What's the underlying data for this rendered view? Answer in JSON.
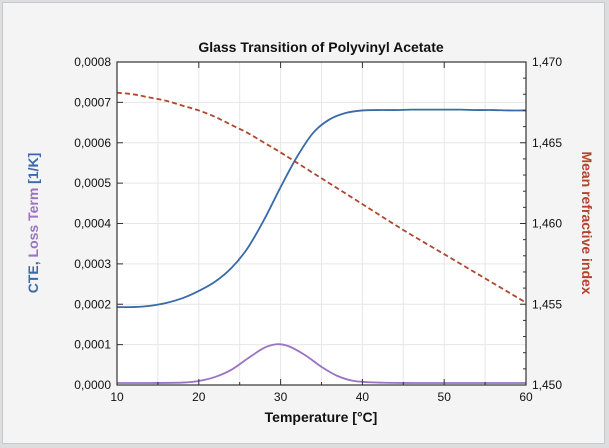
{
  "chart_data": {
    "type": "line",
    "title": "Glass Transition of Polyvinyl Acetate",
    "xlabel": "Temperature [°C]",
    "ylabel_parts": [
      {
        "text": "CTE",
        "color": "#3a6aa8"
      },
      {
        "text": ", ",
        "color": "#3a6aa8"
      },
      {
        "text": "Loss Term",
        "color": "#9b72c4"
      },
      {
        "text": " [1/K]",
        "color": "#3a6aa8"
      }
    ],
    "y2label": "Mean refractive index",
    "xlim": [
      10,
      60
    ],
    "ylim": [
      0,
      0.0008
    ],
    "y2lim": [
      1.45,
      1.47
    ],
    "xticks": [
      "10",
      "20",
      "30",
      "40",
      "50",
      "60"
    ],
    "yticks": [
      "0,0000",
      "0,0001",
      "0,0002",
      "0,0003",
      "0,0004",
      "0,0005",
      "0,0006",
      "0,0007",
      "0,0008"
    ],
    "y2ticks": [
      "1,450",
      "1,455",
      "1,460",
      "1,465",
      "1,470"
    ],
    "grid": true,
    "series": [
      {
        "axis": "left",
        "color": "#3a6aa8",
        "style": "solid",
        "x": [
          10,
          12,
          14,
          16,
          18,
          20,
          22,
          24,
          26,
          28,
          30,
          32,
          34,
          36,
          38,
          40,
          42,
          44,
          46,
          48,
          50,
          52,
          54,
          56,
          58,
          60
        ],
        "y": [
          0.000193,
          0.000193,
          0.000196,
          0.000203,
          0.000215,
          0.000233,
          0.000256,
          0.00029,
          0.00034,
          0.00041,
          0.00049,
          0.000565,
          0.000625,
          0.000658,
          0.000674,
          0.00068,
          0.000681,
          0.000681,
          0.000682,
          0.000682,
          0.000682,
          0.000682,
          0.000681,
          0.000681,
          0.00068,
          0.00068
        ]
      },
      {
        "axis": "left",
        "color": "#9b72c4",
        "style": "solid",
        "x": [
          10,
          14,
          18,
          20,
          22,
          24,
          26,
          28,
          29.5,
          31,
          33,
          35,
          37,
          39,
          42,
          46,
          50,
          55,
          60
        ],
        "y": [
          5e-06,
          5e-06,
          6e-06,
          1e-05,
          2e-05,
          3.8e-05,
          6.6e-05,
          9.2e-05,
          0.000101,
          9.6e-05,
          7.4e-05,
          4.5e-05,
          2.2e-05,
          1e-05,
          6e-06,
          5e-06,
          5e-06,
          5e-06,
          5e-06
        ]
      },
      {
        "axis": "right",
        "color": "#b2452d",
        "style": "dashed",
        "x": [
          10,
          12,
          14,
          16,
          18,
          20,
          22,
          24,
          26,
          28,
          30,
          35,
          40,
          45,
          50,
          55,
          60
        ],
        "y": [
          1.4681,
          1.468,
          1.4678,
          1.4676,
          1.4673,
          1.467,
          1.4666,
          1.4661,
          1.4656,
          1.465,
          1.4644,
          1.4628,
          1.4612,
          1.4596,
          1.4581,
          1.4566,
          1.4551
        ]
      }
    ]
  }
}
